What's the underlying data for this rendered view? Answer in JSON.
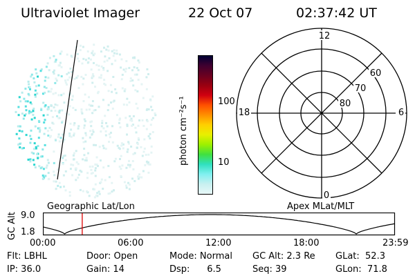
{
  "header": {
    "instrument": "Ultraviolet Imager",
    "date": "22 Oct 07",
    "time": "02:37:42 UT"
  },
  "colorbar": {
    "unit_label": "photon cm⁻²s⁻¹",
    "ticks": [
      "100",
      "10"
    ],
    "colors": [
      "#000033",
      "#400030",
      "#6a0020",
      "#9a0010",
      "#d00010",
      "#ff5000",
      "#ff9000",
      "#ffd000",
      "#e8f000",
      "#9cf000",
      "#40e040",
      "#30e0c0",
      "#80f0f0",
      "#c8f0f0",
      "#e8f8f8"
    ]
  },
  "polar_grid": {
    "mlt_labels": {
      "top": "12",
      "left": "18",
      "right": "6",
      "bottom": "0"
    },
    "lat_labels": [
      "60",
      "70",
      "80"
    ]
  },
  "timeline": {
    "ylabel": "GC Alt",
    "ymax": "9.0",
    "ymin": "1.8",
    "left_title": "Geographic Lat/Lon",
    "right_title": "Apex  MLat/MLT",
    "xticks": [
      "00:00",
      "06:00",
      "12:00",
      "18:00",
      "23:59"
    ],
    "current_time_fraction": 0.11
  },
  "footer": {
    "row1": {
      "flt": "Flt: LBHL",
      "door": "Door: Open",
      "mode": "Mode: Normal",
      "gcalt": "GC Alt: 2.3 Re",
      "glat": "GLat:  52.3"
    },
    "row2": {
      "ip": "IP: 36.0",
      "gain": "Gain: 14",
      "dsp": "Dsp:      6.5",
      "seq": "Seq: 39",
      "glon": "GLon:  71.8"
    }
  }
}
